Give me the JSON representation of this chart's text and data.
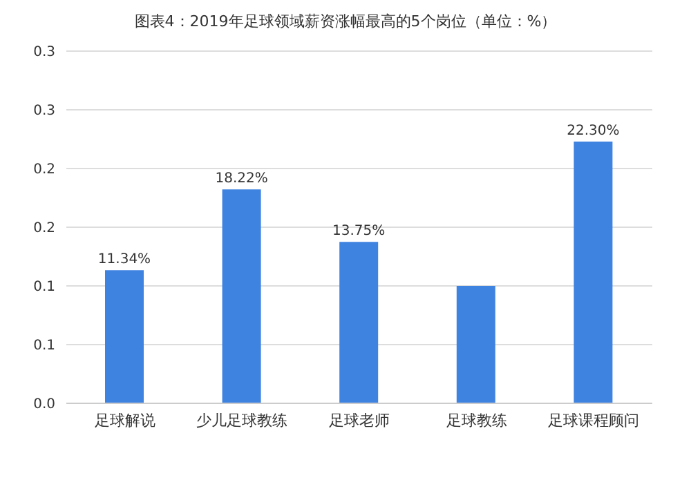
{
  "chart_data": {
    "type": "bar",
    "title": "图表4：2019年足球领域薪资涨幅最高的5个岗位（单位：%）",
    "categories": [
      "足球解说",
      "少儿足球教练",
      "足球老师",
      "足球教练",
      "足球课程顾问"
    ],
    "values": [
      0.1134,
      0.1822,
      0.1375,
      0.1,
      0.223
    ],
    "value_labels": [
      "11.34%",
      "18.22%",
      "13.75%",
      null,
      "22.30%"
    ],
    "color": "#3f83e0",
    "ylim": [
      0,
      0.3
    ],
    "yticks": [
      {
        "value": 0,
        "label": "0.0"
      },
      {
        "value": 0.05,
        "label": "0.1"
      },
      {
        "value": 0.1,
        "label": "0.1"
      },
      {
        "value": 0.15,
        "label": "0.2"
      },
      {
        "value": 0.2,
        "label": "0.2"
      },
      {
        "value": 0.25,
        "label": "0.3"
      },
      {
        "value": 0.3,
        "label": "0.3"
      }
    ],
    "grid": "y",
    "legend": false
  }
}
